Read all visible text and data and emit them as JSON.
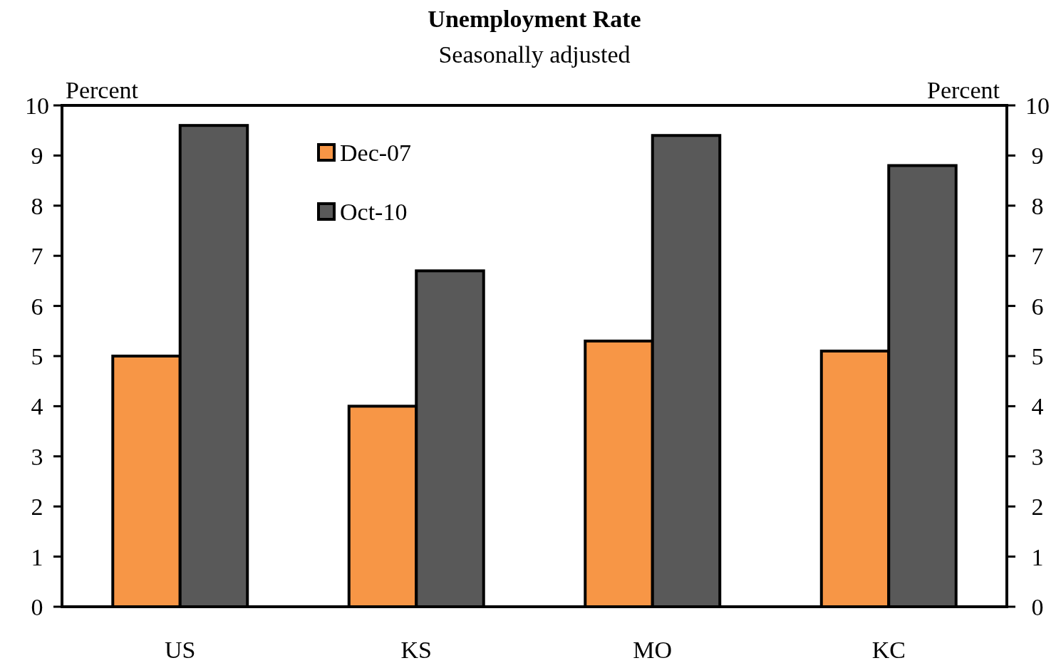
{
  "chart_data": {
    "type": "bar",
    "title": "Unemployment Rate",
    "subtitle": "Seasonally adjusted",
    "ylabel": "Percent",
    "y2label": "Percent",
    "categories": [
      "US",
      "KS",
      "MO",
      "KC"
    ],
    "series": [
      {
        "name": "Dec-07",
        "color": "#f79646",
        "values": [
          5.0,
          4.0,
          5.3,
          5.1
        ]
      },
      {
        "name": "Oct-10",
        "color": "#595959",
        "values": [
          9.6,
          6.7,
          9.4,
          8.8
        ]
      }
    ],
    "ylim": [
      0,
      10
    ],
    "yticks": [
      0,
      1,
      2,
      3,
      4,
      5,
      6,
      7,
      8,
      9,
      10
    ],
    "y2lim": [
      0,
      10
    ],
    "y2ticks": [
      0,
      1,
      2,
      3,
      4,
      5,
      6,
      7,
      8,
      9,
      10
    ],
    "grid": false,
    "legend": "top left"
  }
}
